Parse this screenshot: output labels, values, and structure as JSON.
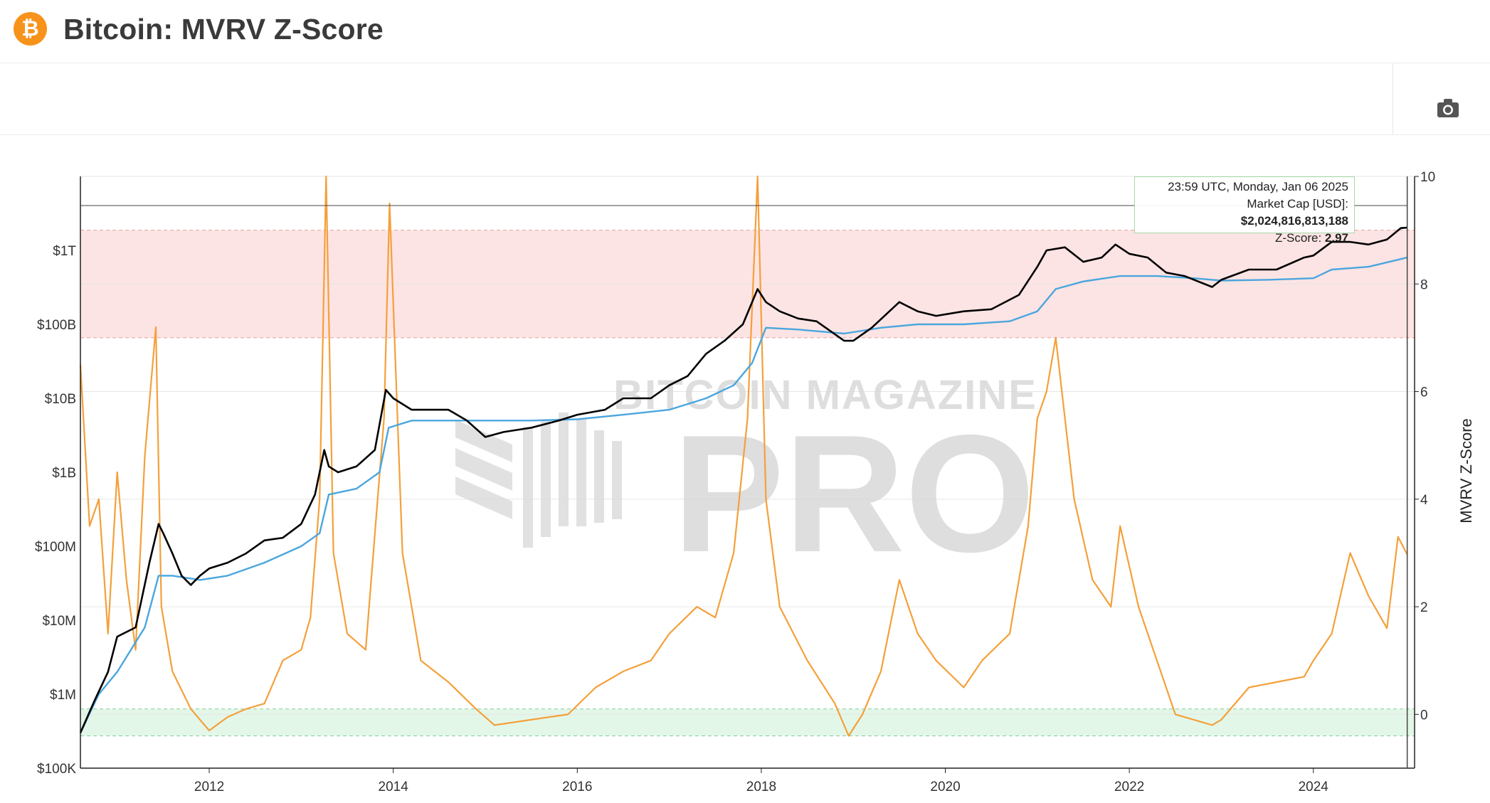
{
  "header": {
    "title": "Bitcoin: MVRV Z-Score",
    "logo_glyph": "₿",
    "logo_color": "#f7931a"
  },
  "toolbar": {
    "camera_icon": "camera-icon"
  },
  "tooltip": {
    "time": "23:59 UTC, Monday, Jan 06 2025",
    "market_cap_label": "Market Cap [USD]: ",
    "market_cap_value": "$2,024,816,813,188",
    "zscore_label": "Z-Score: ",
    "zscore_value": "2.97"
  },
  "watermark": {
    "line1": "BITCOIN MAGAZINE",
    "line2": "PRO"
  },
  "chart_data": {
    "type": "line",
    "title": "Bitcoin: MVRV Z-Score",
    "x_range": [
      2010.6,
      2025.1
    ],
    "x_ticks": [
      "2012",
      "2014",
      "2016",
      "2018",
      "2020",
      "2022",
      "2024"
    ],
    "x_tick_values": [
      2012,
      2014,
      2016,
      2018,
      2020,
      2022,
      2024
    ],
    "y_left": {
      "scale": "log",
      "range": [
        100000,
        10000000000000
      ],
      "ticks": [
        "$100K",
        "$1M",
        "$10M",
        "$100M",
        "$1B",
        "$10B",
        "$100B",
        "$1T"
      ],
      "tick_values": [
        100000,
        1000000,
        10000000,
        100000000,
        1000000000,
        10000000000,
        100000000000,
        1000000000000
      ]
    },
    "y_right": {
      "label": "MVRV Z-Score",
      "range": [
        -1,
        10
      ],
      "ticks": [
        "0",
        "2",
        "4",
        "6",
        "8",
        "10"
      ],
      "tick_values": [
        0,
        2,
        4,
        6,
        8,
        10
      ]
    },
    "bands": [
      {
        "axis": "right",
        "from": 7.0,
        "to": 9.0,
        "color": "#fde4e4"
      },
      {
        "axis": "right",
        "from": -0.4,
        "to": 0.1,
        "color": "#e3f7e9"
      }
    ],
    "colors": {
      "market_cap": "#000000",
      "realized_cap": "#4aa6de",
      "zscore": "#f4a03a"
    },
    "series": [
      {
        "key": "market_cap",
        "axis": "left",
        "x": [
          2010.6,
          2010.75,
          2010.9,
          2011.0,
          2011.2,
          2011.35,
          2011.45,
          2011.5,
          2011.6,
          2011.7,
          2011.8,
          2011.9,
          2012.0,
          2012.2,
          2012.4,
          2012.6,
          2012.8,
          2013.0,
          2013.15,
          2013.25,
          2013.3,
          2013.4,
          2013.6,
          2013.8,
          2013.92,
          2014.0,
          2014.2,
          2014.4,
          2014.6,
          2014.8,
          2015.0,
          2015.2,
          2015.5,
          2015.8,
          2016.0,
          2016.3,
          2016.5,
          2016.8,
          2017.0,
          2017.2,
          2017.4,
          2017.6,
          2017.8,
          2017.96,
          2018.05,
          2018.2,
          2018.4,
          2018.6,
          2018.9,
          2019.0,
          2019.2,
          2019.5,
          2019.7,
          2019.9,
          2020.2,
          2020.5,
          2020.8,
          2021.0,
          2021.1,
          2021.3,
          2021.5,
          2021.7,
          2021.85,
          2022.0,
          2022.2,
          2022.4,
          2022.6,
          2022.9,
          2023.0,
          2023.3,
          2023.6,
          2023.9,
          2024.0,
          2024.2,
          2024.4,
          2024.6,
          2024.8,
          2024.95,
          2025.02
        ],
        "values": [
          300000,
          800000,
          2000000,
          6000000,
          8000000,
          60000000,
          200000000,
          150000000,
          80000000,
          40000000,
          30000000,
          40000000,
          50000000,
          60000000,
          80000000,
          120000000,
          130000000,
          200000000,
          500000000,
          2000000000,
          1200000000,
          1000000000,
          1200000000,
          2000000000,
          13000000000,
          10000000000,
          7000000000,
          7000000000,
          7000000000,
          5000000000,
          3000000000,
          3500000000,
          4000000000,
          5000000000,
          6000000000,
          7000000000,
          10000000000,
          10000000000,
          15000000000,
          20000000000,
          40000000000,
          60000000000,
          100000000000,
          300000000000,
          200000000000,
          150000000000,
          120000000000,
          110000000000,
          60000000000,
          60000000000,
          90000000000,
          200000000000,
          150000000000,
          130000000000,
          150000000000,
          160000000000,
          250000000000,
          600000000000,
          1000000000000,
          1100000000000,
          700000000000,
          800000000000,
          1200000000000,
          900000000000,
          800000000000,
          500000000000,
          450000000000,
          320000000000,
          400000000000,
          550000000000,
          550000000000,
          800000000000,
          850000000000,
          1300000000000,
          1300000000000,
          1200000000000,
          1400000000000,
          2000000000000,
          2024816813188
        ]
      },
      {
        "key": "realized_cap",
        "axis": "left",
        "x": [
          2010.6,
          2010.8,
          2011.0,
          2011.3,
          2011.45,
          2011.6,
          2011.9,
          2012.2,
          2012.6,
          2013.0,
          2013.2,
          2013.3,
          2013.6,
          2013.85,
          2013.95,
          2014.2,
          2014.6,
          2015.0,
          2015.5,
          2016.0,
          2016.5,
          2017.0,
          2017.4,
          2017.7,
          2017.9,
          2018.05,
          2018.4,
          2018.9,
          2019.3,
          2019.7,
          2020.2,
          2020.7,
          2021.0,
          2021.2,
          2021.5,
          2021.9,
          2022.3,
          2022.7,
          2023.0,
          2023.5,
          2024.0,
          2024.2,
          2024.6,
          2025.02
        ],
        "values": [
          300000,
          1000000,
          2000000,
          8000000,
          40000000,
          40000000,
          35000000,
          40000000,
          60000000,
          100000000,
          150000000,
          500000000,
          600000000,
          1000000000,
          4000000000,
          5000000000,
          5000000000,
          5000000000,
          5000000000,
          5200000000,
          6000000000,
          7000000000,
          10000000000,
          15000000000,
          30000000000,
          90000000000,
          85000000000,
          75000000000,
          90000000000,
          100000000000,
          100000000000,
          110000000000,
          150000000000,
          300000000000,
          380000000000,
          450000000000,
          450000000000,
          420000000000,
          390000000000,
          400000000000,
          420000000000,
          550000000000,
          600000000000,
          800000000000
        ]
      },
      {
        "key": "zscore",
        "axis": "right",
        "x": [
          2010.6,
          2010.7,
          2010.8,
          2010.9,
          2011.0,
          2011.1,
          2011.2,
          2011.3,
          2011.42,
          2011.48,
          2011.6,
          2011.8,
          2012.0,
          2012.2,
          2012.4,
          2012.6,
          2012.8,
          2013.0,
          2013.1,
          2013.2,
          2013.27,
          2013.35,
          2013.5,
          2013.7,
          2013.9,
          2013.96,
          2014.1,
          2014.3,
          2014.6,
          2014.9,
          2015.1,
          2015.5,
          2015.9,
          2016.2,
          2016.5,
          2016.8,
          2017.0,
          2017.3,
          2017.5,
          2017.7,
          2017.85,
          2017.96,
          2018.05,
          2018.2,
          2018.5,
          2018.8,
          2018.95,
          2019.1,
          2019.3,
          2019.5,
          2019.7,
          2019.9,
          2020.2,
          2020.4,
          2020.7,
          2020.9,
          2021.0,
          2021.1,
          2021.2,
          2021.4,
          2021.6,
          2021.8,
          2021.9,
          2022.1,
          2022.3,
          2022.5,
          2022.7,
          2022.9,
          2023.0,
          2023.3,
          2023.6,
          2023.9,
          2024.0,
          2024.2,
          2024.4,
          2024.6,
          2024.8,
          2024.92,
          2025.02
        ],
        "values": [
          6.5,
          3.5,
          4.0,
          1.5,
          4.5,
          2.5,
          1.2,
          4.8,
          7.2,
          2.0,
          0.8,
          0.1,
          -0.3,
          -0.05,
          0.1,
          0.2,
          1.0,
          1.2,
          1.8,
          4.0,
          10.0,
          3.0,
          1.5,
          1.2,
          5.5,
          9.5,
          3.0,
          1.0,
          0.6,
          0.1,
          -0.2,
          -0.1,
          0.0,
          0.5,
          0.8,
          1.0,
          1.5,
          2.0,
          1.8,
          3.0,
          5.5,
          10.0,
          4.0,
          2.0,
          1.0,
          0.2,
          -0.4,
          0.0,
          0.8,
          2.5,
          1.5,
          1.0,
          0.5,
          1.0,
          1.5,
          3.5,
          5.5,
          6.0,
          7.0,
          4.0,
          2.5,
          2.0,
          3.5,
          2.0,
          1.0,
          0.0,
          -0.1,
          -0.2,
          -0.1,
          0.5,
          0.6,
          0.7,
          1.0,
          1.5,
          3.0,
          2.2,
          1.6,
          3.3,
          2.97
        ]
      }
    ]
  }
}
